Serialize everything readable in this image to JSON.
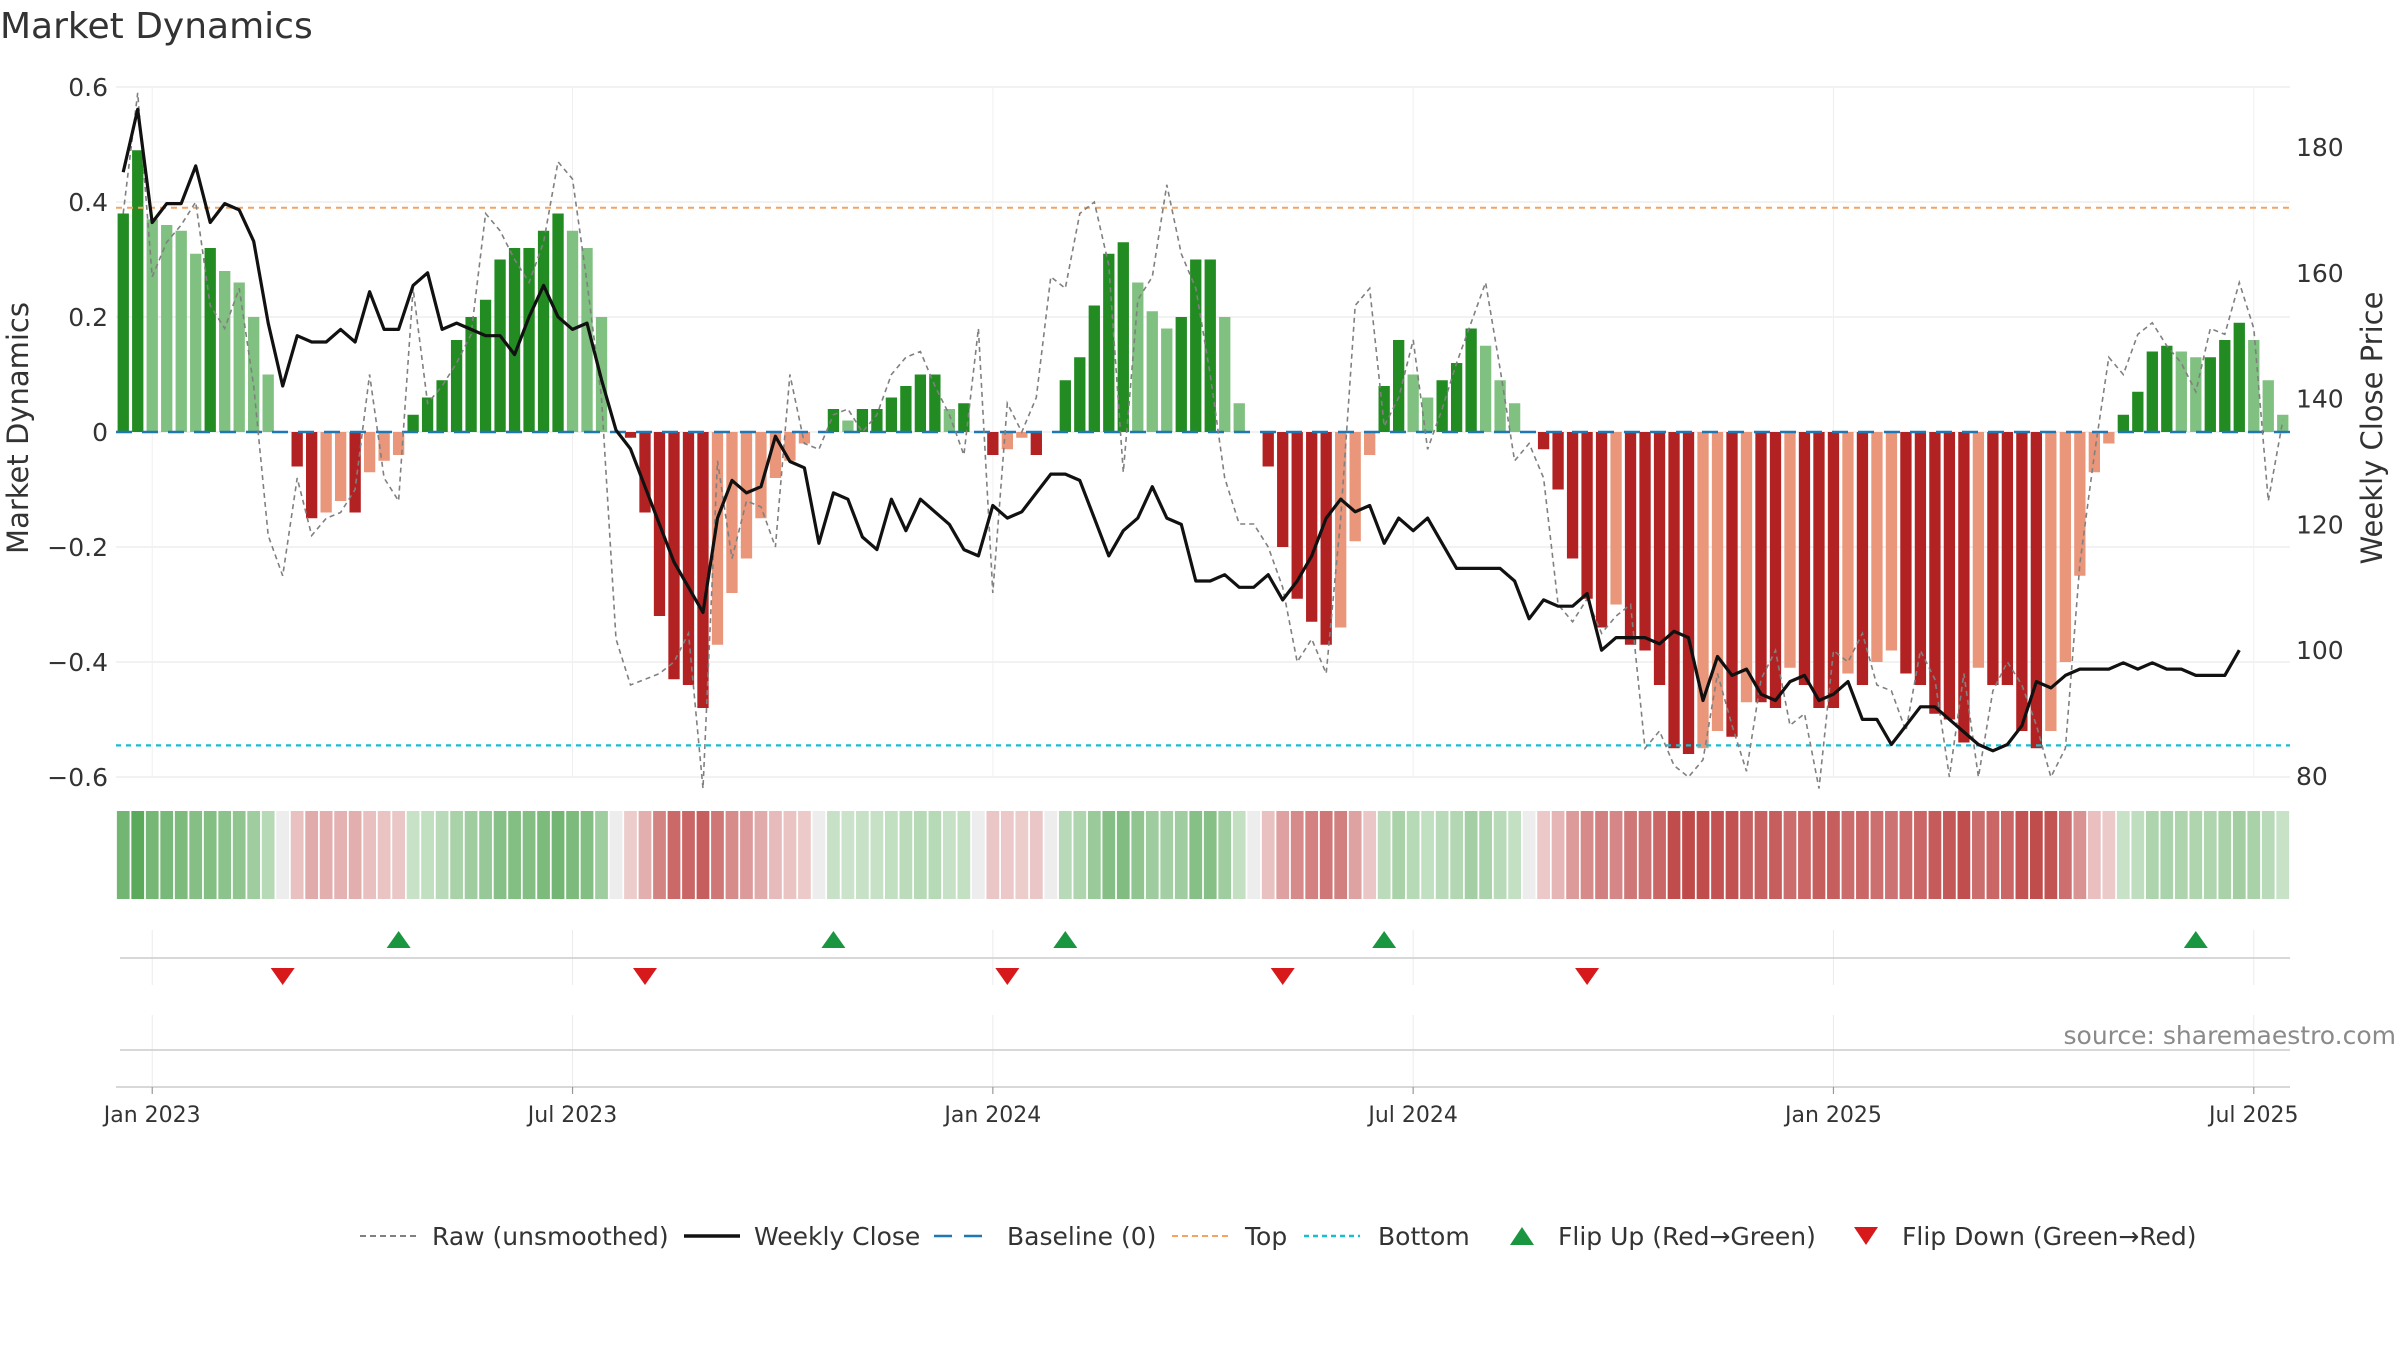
{
  "chart_data": {
    "type": "bar",
    "title": "Market Dynamics",
    "ylabel": "Market Dynamics",
    "y2label": "Weekly Close Price",
    "ylim": [
      -0.6,
      0.6
    ],
    "y2lim": [
      80,
      190
    ],
    "yticks": [
      "0.6",
      "0.4",
      "0.2",
      "0",
      "−0.2",
      "−0.4",
      "−0.6"
    ],
    "yticks_values": [
      0.6,
      0.4,
      0.2,
      0,
      -0.2,
      -0.4,
      -0.6
    ],
    "y2ticks": [
      "180",
      "160",
      "140",
      "120",
      "100",
      "80"
    ],
    "y2ticks_values": [
      180,
      160,
      140,
      120,
      100,
      80
    ],
    "xticks": [
      "Jan 2023",
      "Jul 2023",
      "Jan 2024",
      "Jul 2024",
      "Jan 2025",
      "Jul 2025"
    ],
    "xticks_index": [
      2,
      31,
      60,
      89,
      118,
      147
    ],
    "weeks_start": "2022-12-19",
    "top_threshold": 0.39,
    "bottom_threshold": -0.545,
    "baseline": 0,
    "colors": {
      "up_strong": "#228b22",
      "up_weak": "#80c080",
      "down_strong": "#b22222",
      "down_weak": "#e9967a",
      "raw": "#808080",
      "close": "#111111",
      "baseline": "#1f77b4",
      "top": "#f4a460",
      "bottom": "#17becf",
      "flip_up": "#1a9641",
      "flip_down": "#d7191c"
    },
    "series": [
      {
        "name": "Market Dynamics",
        "values": [
          0.38,
          0.49,
          0.37,
          0.36,
          0.35,
          0.31,
          0.32,
          0.28,
          0.26,
          0.2,
          0.1,
          0,
          -0.06,
          -0.15,
          -0.14,
          -0.12,
          -0.14,
          -0.07,
          -0.05,
          -0.04,
          0.03,
          0.06,
          0.09,
          0.16,
          0.2,
          0.23,
          0.3,
          0.32,
          0.32,
          0.35,
          0.38,
          0.35,
          0.32,
          0.2,
          0,
          -0.01,
          -0.14,
          -0.32,
          -0.43,
          -0.44,
          -0.48,
          -0.37,
          -0.28,
          -0.22,
          -0.15,
          -0.08,
          -0.05,
          -0.02,
          0.0,
          0.04,
          0.02,
          0.04,
          0.04,
          0.06,
          0.08,
          0.1,
          0.1,
          0.04,
          0.05,
          0,
          -0.04,
          -0.03,
          -0.01,
          -0.04,
          0,
          0.09,
          0.13,
          0.22,
          0.31,
          0.33,
          0.26,
          0.21,
          0.18,
          0.2,
          0.3,
          0.3,
          0.2,
          0.05,
          0,
          -0.06,
          -0.2,
          -0.29,
          -0.33,
          -0.37,
          -0.34,
          -0.19,
          -0.04,
          0.08,
          0.16,
          0.1,
          0.06,
          0.09,
          0.12,
          0.18,
          0.15,
          0.09,
          0.05,
          0,
          -0.03,
          -0.1,
          -0.22,
          -0.29,
          -0.34,
          -0.3,
          -0.37,
          -0.38,
          -0.44,
          -0.55,
          -0.56,
          -0.55,
          -0.52,
          -0.53,
          -0.47,
          -0.47,
          -0.48,
          -0.41,
          -0.44,
          -0.48,
          -0.48,
          -0.42,
          -0.44,
          -0.4,
          -0.38,
          -0.42,
          -0.44,
          -0.49,
          -0.5,
          -0.54,
          -0.41,
          -0.44,
          -0.44,
          -0.52,
          -0.55,
          -0.52,
          -0.4,
          -0.25,
          -0.07,
          -0.02,
          0.03,
          0.07,
          0.14,
          0.15,
          0.14,
          0.13,
          0.13,
          0.16,
          0.19,
          0.16,
          0.09,
          0.03
        ]
      },
      {
        "name": "Raw (unsmoothed)",
        "values": [
          0.38,
          0.59,
          0.27,
          0.33,
          0.36,
          0.4,
          0.22,
          0.18,
          0.25,
          0.08,
          -0.18,
          -0.25,
          -0.08,
          -0.18,
          -0.15,
          -0.14,
          -0.1,
          0.1,
          -0.08,
          -0.12,
          0.25,
          0.05,
          0.08,
          0.12,
          0.17,
          0.38,
          0.35,
          0.3,
          0.26,
          0.33,
          0.47,
          0.44,
          0.26,
          0.06,
          -0.36,
          -0.44,
          -0.43,
          -0.42,
          -0.4,
          -0.35,
          -0.62,
          -0.05,
          -0.22,
          -0.12,
          -0.13,
          -0.2,
          0.1,
          -0.02,
          -0.03,
          0.03,
          0.04,
          0.0,
          0.03,
          0.1,
          0.13,
          0.14,
          0.08,
          0.03,
          -0.04,
          0.18,
          -0.28,
          0.05,
          0.0,
          0.06,
          0.27,
          0.25,
          0.38,
          0.4,
          0.29,
          -0.07,
          0.23,
          0.27,
          0.43,
          0.31,
          0.25,
          0.1,
          -0.08,
          -0.16,
          -0.16,
          -0.2,
          -0.27,
          -0.4,
          -0.36,
          -0.42,
          -0.15,
          0.22,
          0.25,
          0.01,
          0.06,
          0.16,
          -0.03,
          0.04,
          0.12,
          0.19,
          0.26,
          0.11,
          -0.05,
          -0.02,
          -0.08,
          -0.3,
          -0.33,
          -0.29,
          -0.35,
          -0.32,
          -0.3,
          -0.55,
          -0.52,
          -0.58,
          -0.6,
          -0.57,
          -0.42,
          -0.51,
          -0.59,
          -0.43,
          -0.38,
          -0.51,
          -0.49,
          -0.62,
          -0.38,
          -0.4,
          -0.35,
          -0.44,
          -0.45,
          -0.52,
          -0.38,
          -0.43,
          -0.6,
          -0.42,
          -0.6,
          -0.45,
          -0.4,
          -0.44,
          -0.51,
          -0.6,
          -0.55,
          -0.23,
          -0.04,
          0.13,
          0.1,
          0.17,
          0.19,
          0.15,
          0.12,
          0.07,
          0.18,
          0.17,
          0.26,
          0.18,
          -0.12,
          0.02
        ]
      },
      {
        "name": "Weekly Close",
        "axis": "right",
        "values": [
          176,
          186,
          168,
          171,
          171,
          177,
          168,
          171,
          170,
          165,
          152,
          142,
          150,
          149,
          149,
          151,
          149,
          157,
          151,
          151,
          158,
          160,
          151,
          152,
          151,
          150,
          150,
          147,
          153,
          158,
          153,
          151,
          152,
          143,
          135,
          132,
          126,
          120,
          114,
          110,
          106,
          121,
          127,
          125,
          126,
          134,
          130,
          129,
          117,
          125,
          124,
          118,
          116,
          124,
          119,
          124,
          122,
          120,
          116,
          115,
          123,
          121,
          122,
          125,
          128,
          128,
          127,
          121,
          115,
          119,
          121,
          126,
          121,
          120,
          111,
          111,
          112,
          110,
          110,
          112,
          108,
          111,
          115,
          121,
          124,
          122,
          123,
          117,
          121,
          119,
          121,
          117,
          113,
          113,
          113,
          113,
          111,
          105,
          108,
          107,
          107,
          109,
          100,
          102,
          102,
          102,
          101,
          103,
          102,
          92,
          99,
          96,
          97,
          93,
          92,
          95,
          96,
          92,
          93,
          95,
          89,
          89,
          85,
          88,
          91,
          91,
          89,
          87,
          85,
          84,
          85,
          88,
          95,
          94,
          96,
          97,
          97,
          97,
          98,
          97,
          98,
          97,
          97,
          96,
          96,
          96,
          100
        ]
      }
    ],
    "flips_up_index": [
      19,
      49,
      65,
      87,
      143
    ],
    "flips_down_index": [
      11,
      36,
      61,
      80,
      101
    ],
    "legend": [
      {
        "label": "Raw (unsmoothed)",
        "kind": "dash-gray"
      },
      {
        "label": "Weekly Close",
        "kind": "line-black"
      },
      {
        "label": "Baseline (0)",
        "kind": "dash-blue"
      },
      {
        "label": "Top",
        "kind": "dash-orange"
      },
      {
        "label": "Bottom",
        "kind": "dash-cyan"
      },
      {
        "label": "Flip Up (Red→Green)",
        "kind": "tri-up"
      },
      {
        "label": "Flip Down (Green→Red)",
        "kind": "tri-down"
      }
    ],
    "source": "source: sharemaestro.com"
  }
}
